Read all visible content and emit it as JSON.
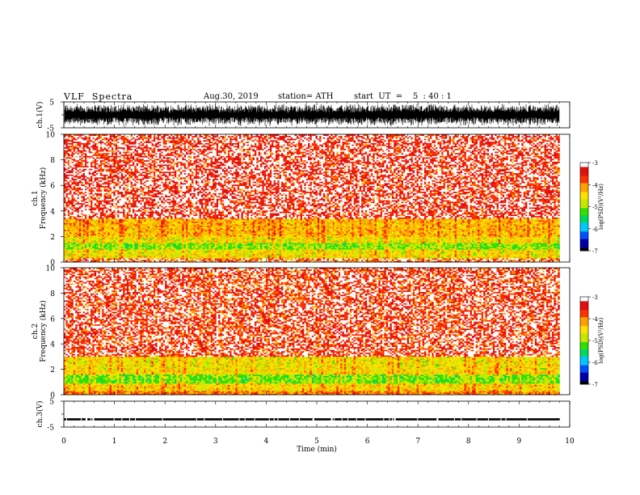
{
  "header": {
    "title": "VLF  Spectra",
    "date": "Aug.30, 2019",
    "station": "station= ATH",
    "start": "start  UT  =    5  : 40 : 1"
  },
  "chart_data": [
    {
      "type": "line",
      "name": "waveform-ch1",
      "ylabel": "ch.1(V)",
      "ylim": [
        -5,
        5
      ],
      "yticks": [
        "5",
        "-5"
      ],
      "xlim": [
        0,
        10
      ],
      "description_values": {
        "amplitude_min": -4.5,
        "amplitude_max": 4.5
      }
    },
    {
      "type": "heatmap",
      "name": "spectrogram-ch1",
      "ylabel": "ch.1\nFrequency  (kHz)",
      "ylabel_lines": [
        "ch.1",
        "Frequency  (kHz)"
      ],
      "ylim": [
        0,
        10
      ],
      "yticks": [
        "0",
        "2",
        "4",
        "6",
        "8",
        "10"
      ],
      "xlim": [
        0,
        9.8
      ],
      "bands": [
        {
          "f0": 0.0,
          "f1": 0.3,
          "level": -3.9
        },
        {
          "f0": 0.3,
          "f1": 1.0,
          "level": -4.6
        },
        {
          "f0": 1.0,
          "f1": 1.5,
          "level": -5.1
        },
        {
          "f0": 1.5,
          "f1": 2.0,
          "level": -4.6
        },
        {
          "f0": 2.0,
          "f1": 3.4,
          "level": -4.3
        },
        {
          "f0": 3.4,
          "f1": 10.0,
          "level": -3.6
        }
      ],
      "colorbar": {
        "label": "log(PSD)(V²/Hz)",
        "ticks": [
          "-3",
          "-4",
          "-5",
          "-6",
          "-7"
        ],
        "range": [
          -7,
          -3
        ]
      }
    },
    {
      "type": "heatmap",
      "name": "spectrogram-ch2",
      "ylabel": "ch.2\nFrequency  (kHz)",
      "ylabel_lines": [
        "ch.2",
        "Frequency  (kHz)"
      ],
      "ylim": [
        0,
        10
      ],
      "yticks": [
        "0",
        "2",
        "4",
        "6",
        "8",
        "10"
      ],
      "xlim": [
        0,
        9.8
      ],
      "bands": [
        {
          "f0": 0.0,
          "f1": 0.3,
          "level": -4.0
        },
        {
          "f0": 0.3,
          "f1": 0.9,
          "level": -4.5
        },
        {
          "f0": 0.9,
          "f1": 1.6,
          "level": -5.1
        },
        {
          "f0": 1.6,
          "f1": 2.0,
          "level": -4.5
        },
        {
          "f0": 2.0,
          "f1": 3.0,
          "level": -4.6
        },
        {
          "f0": 3.0,
          "f1": 10.0,
          "level": -3.7
        }
      ],
      "colorbar": {
        "label": "log(PSD)(V²/Hz)",
        "ticks": [
          "-3",
          "-4",
          "-5",
          "-6",
          "-7"
        ],
        "range": [
          -7,
          -3
        ]
      }
    },
    {
      "type": "line",
      "name": "waveform-ch3",
      "ylabel": "ch.3(V)",
      "ylim": [
        -5,
        5
      ],
      "yticks": [
        "5",
        "-5"
      ],
      "xlim": [
        0,
        10
      ],
      "xlabel": "Time  (min)",
      "xticks": [
        "0",
        "1",
        "2",
        "3",
        "4",
        "5",
        "6",
        "7",
        "8",
        "9",
        "10"
      ],
      "description_values": {
        "amplitude_min": -2.4,
        "amplitude_max": -1.6
      }
    }
  ],
  "colors": {
    "scale": [
      "#000000",
      "#0000aa",
      "#0050ff",
      "#00c8ff",
      "#00d860",
      "#30e000",
      "#c8e800",
      "#ffe000",
      "#ffa000",
      "#ff3000",
      "#e01010",
      "#ffffff"
    ]
  }
}
